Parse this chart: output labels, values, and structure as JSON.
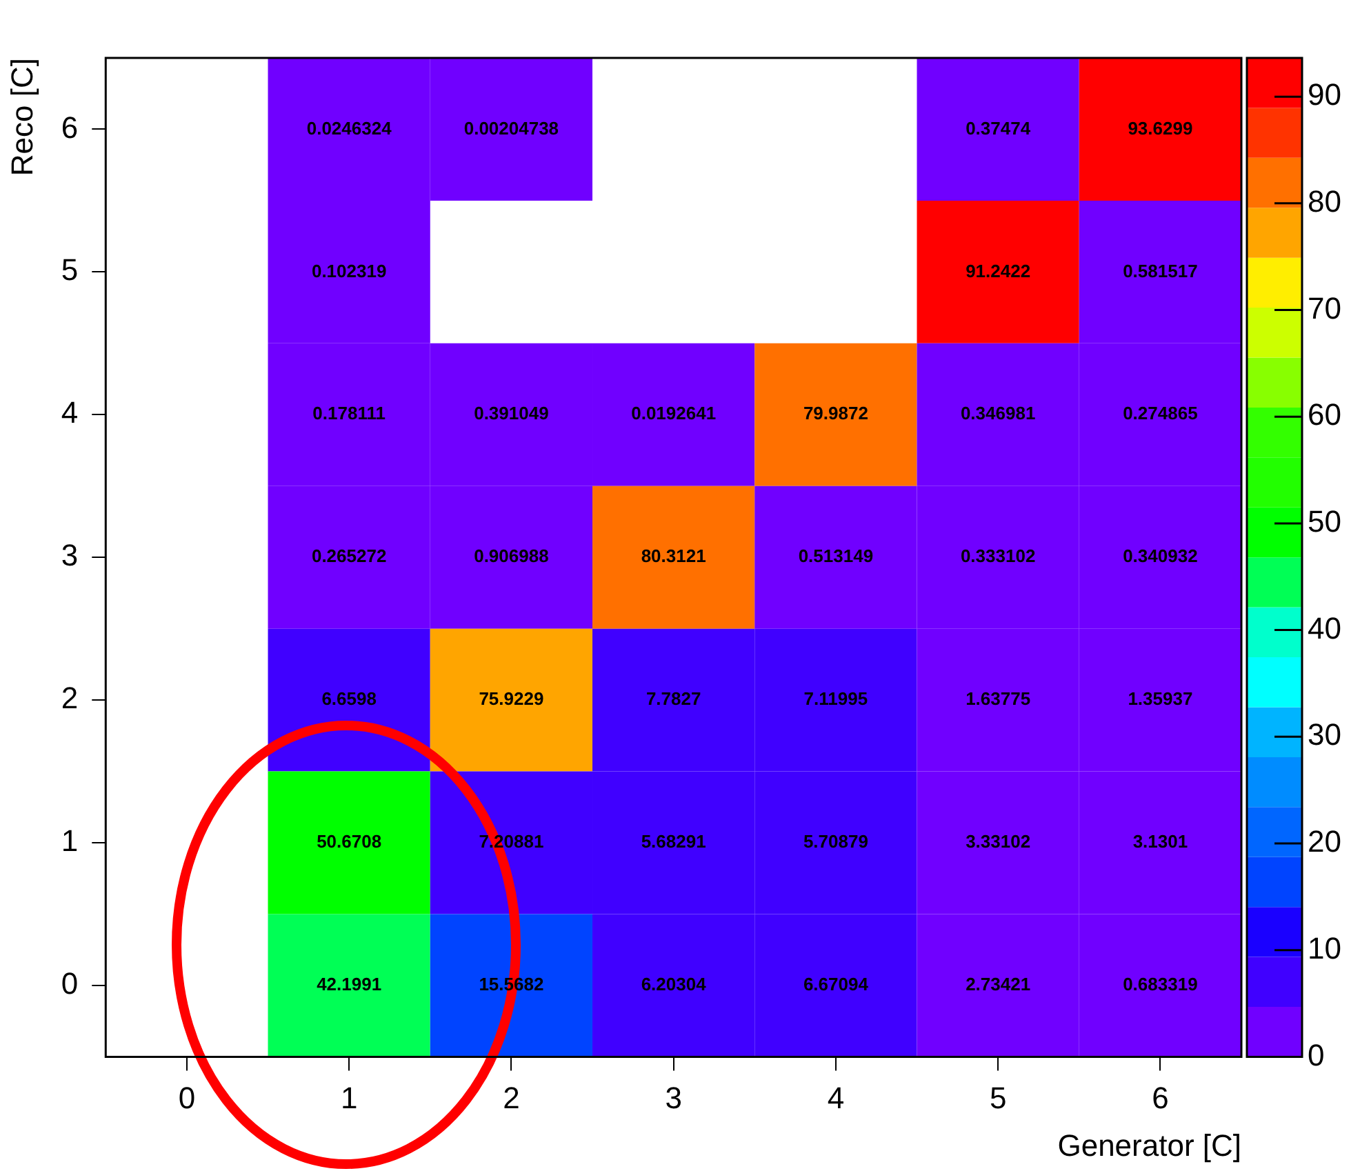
{
  "chart_data": {
    "type": "heatmap",
    "xlabel": "Generator [C]",
    "ylabel": "Reco [C]",
    "categories": [
      "0",
      "1",
      "2",
      "3",
      "4",
      "5",
      "6"
    ],
    "y_categories": [
      "6",
      "5",
      "4",
      "3",
      "2",
      "1",
      "0"
    ],
    "cells": [
      [
        null,
        0.0246324,
        0.00204738,
        null,
        null,
        0.37474,
        93.6299
      ],
      [
        null,
        0.102319,
        null,
        null,
        null,
        91.2422,
        0.581517
      ],
      [
        null,
        0.178111,
        0.391049,
        0.0192641,
        79.9872,
        0.346981,
        0.274865
      ],
      [
        null,
        0.265272,
        0.906988,
        80.3121,
        0.513149,
        0.333102,
        0.340932
      ],
      [
        null,
        6.6598,
        75.9229,
        7.7827,
        7.11995,
        1.63775,
        1.35937
      ],
      [
        null,
        50.6708,
        7.20881,
        5.68291,
        5.70879,
        3.33102,
        3.1301
      ],
      [
        null,
        42.1991,
        15.5682,
        6.20304,
        6.67094,
        2.73421,
        0.683319
      ]
    ],
    "clim": [
      0,
      93.6299
    ],
    "cticks": [
      0,
      10,
      20,
      30,
      40,
      50,
      60,
      70,
      80,
      90
    ],
    "data_labels": true,
    "grid": false,
    "legend": false
  }
}
